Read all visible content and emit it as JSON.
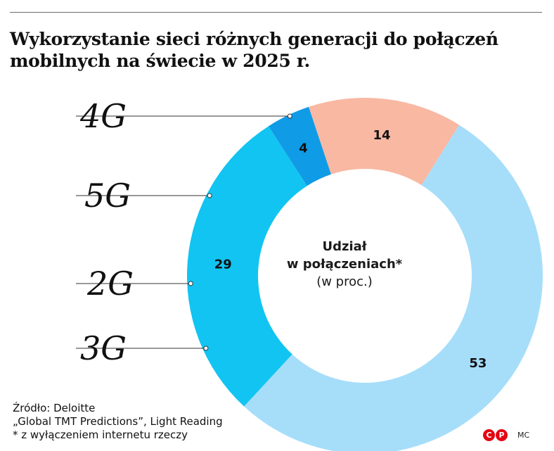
{
  "title": {
    "line1": "Wykorzystanie sieci różnych generacji do połączeń",
    "line2": "mobilnych na świecie w 2025 r."
  },
  "chart_data": {
    "type": "pie",
    "donut": true,
    "center_label": {
      "line1": "Udział",
      "line2": "w połączeniach*",
      "line3": "(w proc.)"
    },
    "slices": [
      {
        "label": "4G",
        "value": 53,
        "color": "#a6defa"
      },
      {
        "label": "3G",
        "value": 29,
        "color": "#12c4f1"
      },
      {
        "label": "2G",
        "value": 4,
        "color": "#109be6"
      },
      {
        "label": "5G",
        "value": 14,
        "color": "#f8b8a2"
      }
    ]
  },
  "footer": {
    "source": "Źródło: Deloitte",
    "source2": "„Global TMT Predictions”, Light Reading",
    "note": "* z wyłączeniem internetu rzeczy"
  },
  "logo": {
    "c": "C",
    "p": "P"
  },
  "author": "MC"
}
